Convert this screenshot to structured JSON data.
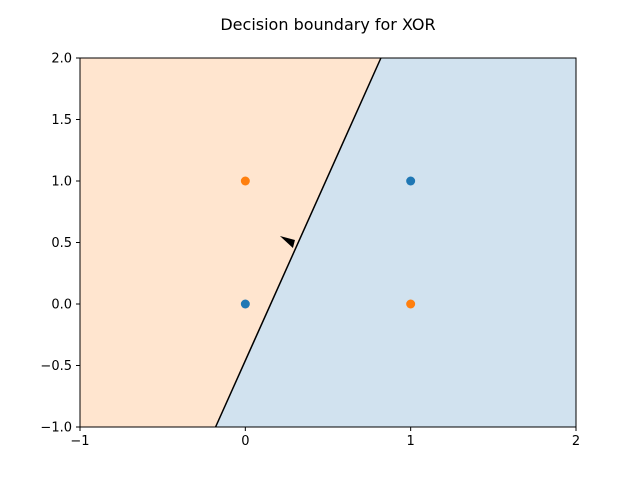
{
  "chart_data": {
    "type": "scatter",
    "title": "Decision boundary for XOR",
    "xlim": [
      -1,
      2
    ],
    "ylim": [
      -1,
      2
    ],
    "x_ticks": [
      -1,
      0,
      1,
      2
    ],
    "x_tick_labels": [
      "−1",
      "0",
      "1",
      "2"
    ],
    "y_ticks": [
      -1.0,
      -0.5,
      0.0,
      0.5,
      1.0,
      1.5,
      2.0
    ],
    "y_tick_labels": [
      "−1.0",
      "−0.5",
      "0.0",
      "0.5",
      "1.0",
      "1.5",
      "2.0"
    ],
    "grid": false,
    "regions": [
      {
        "color": "#ffe5cf",
        "side": "left of boundary"
      },
      {
        "color": "#d1e2ef",
        "side": "right of boundary"
      }
    ],
    "boundary": {
      "points": [
        [
          -0.18,
          -1.0
        ],
        [
          0.82,
          2.0
        ]
      ],
      "color": "#000000"
    },
    "arrow": {
      "tail": [
        0.3,
        0.52
      ],
      "direction": "left-up",
      "color": "#000000"
    },
    "series": [
      {
        "color": "#1f77b4",
        "points": [
          [
            0,
            0
          ],
          [
            1,
            1
          ]
        ]
      },
      {
        "color": "#ff7f0e",
        "points": [
          [
            0,
            1
          ],
          [
            1,
            0
          ]
        ]
      }
    ]
  }
}
